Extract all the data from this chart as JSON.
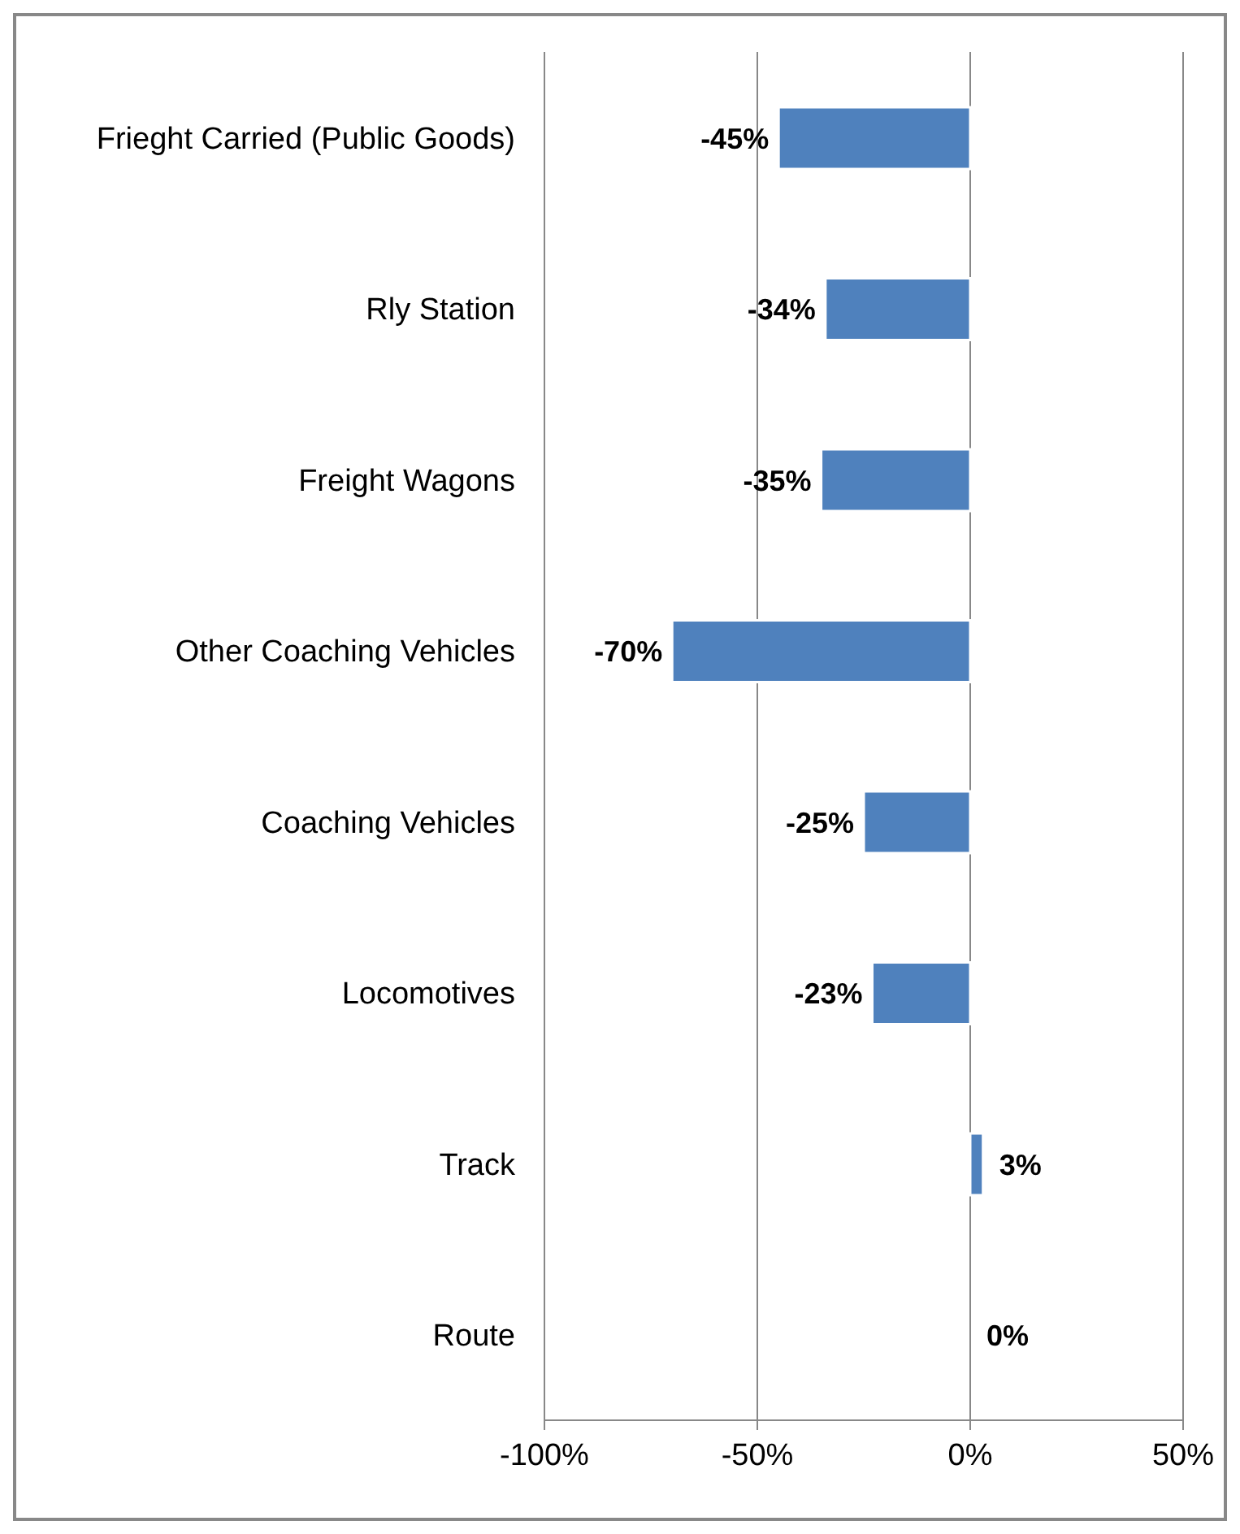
{
  "chart_data": {
    "type": "bar",
    "orientation": "horizontal",
    "categories": [
      "Frieght Carried (Public Goods)",
      "Rly Station",
      "Freight Wagons",
      "Other Coaching Vehicles",
      "Coaching Vehicles",
      "Locomotives",
      "Track",
      "Route"
    ],
    "values": [
      -45,
      -34,
      -35,
      -70,
      -25,
      -23,
      3,
      0
    ],
    "value_labels": [
      "-45%",
      "-34%",
      "-35%",
      "-70%",
      "-25%",
      "-23%",
      "3%",
      "0%"
    ],
    "color": "#4f81bd",
    "xlim": [
      -100,
      50
    ],
    "xticks": [
      {
        "value": -100,
        "label": "-100%"
      },
      {
        "value": -50,
        "label": "-50%"
      },
      {
        "value": 0,
        "label": "0%"
      },
      {
        "value": 50,
        "label": "50%"
      }
    ],
    "grid": "x",
    "legend": false
  }
}
